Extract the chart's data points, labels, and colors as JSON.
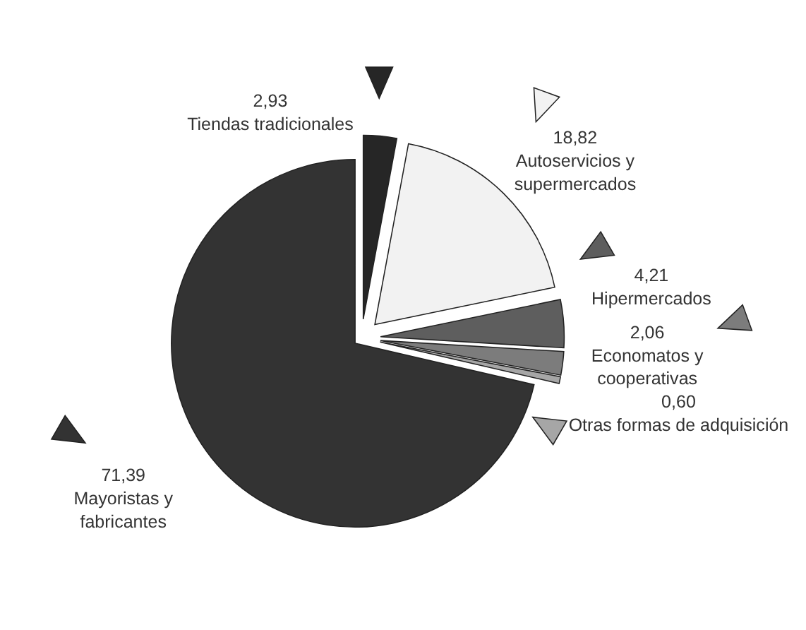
{
  "chart_data": {
    "type": "pie",
    "categories": [
      "Tiendas tradicionales",
      "Autoservicios y supermercados",
      "Hipermercados",
      "Economatos y cooperativas",
      "Otras formas de adquisición",
      "Mayoristas y fabricantes"
    ],
    "values": [
      2.93,
      18.82,
      4.21,
      2.06,
      0.6,
      71.39
    ],
    "value_labels": [
      "2,93",
      "18,82",
      "4,21",
      "2,06",
      "0,60",
      "71,39"
    ],
    "colors": [
      "#262626",
      "#f2f2f2",
      "#5e5e5e",
      "#7c7c7c",
      "#a6a6a6",
      "#333333"
    ]
  }
}
